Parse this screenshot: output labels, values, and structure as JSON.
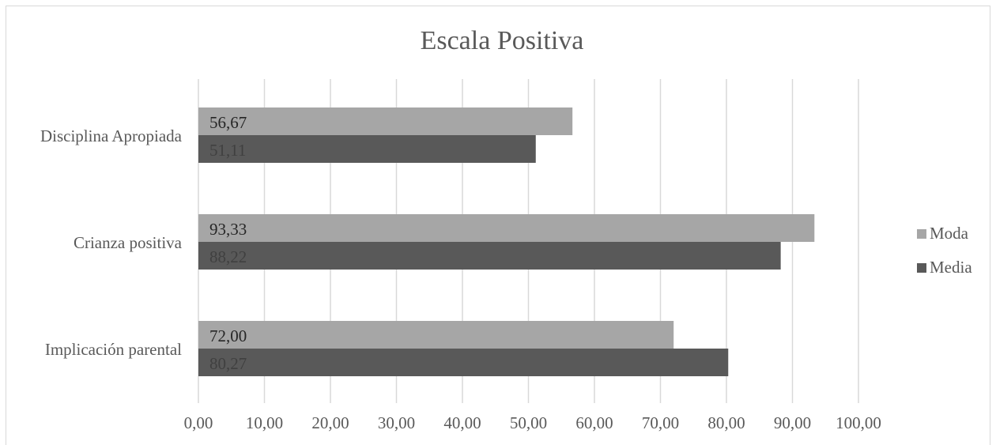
{
  "chart_data": {
    "type": "bar",
    "orientation": "horizontal",
    "title": "Escala Positiva",
    "categories": [
      "Disciplina Apropiada",
      "Crianza positiva",
      "Implicación parental"
    ],
    "series": [
      {
        "name": "Moda",
        "color": "#a6a6a6",
        "label_color": "#262626",
        "values": [
          56.67,
          93.33,
          72.0
        ],
        "labels": [
          "56,67",
          "93,33",
          "72,00"
        ]
      },
      {
        "name": "Media",
        "color": "#595959",
        "label_color": "#404040",
        "values": [
          51.11,
          88.22,
          80.27
        ],
        "labels": [
          "51,11",
          "88,22",
          "80,27"
        ]
      }
    ],
    "xlim": [
      0,
      100
    ],
    "xticks": [
      0,
      10,
      20,
      30,
      40,
      50,
      60,
      70,
      80,
      90,
      100
    ],
    "xtick_labels": [
      "0,00",
      "10,00",
      "20,00",
      "30,00",
      "40,00",
      "50,00",
      "60,00",
      "70,00",
      "80,00",
      "90,00",
      "100,00"
    ],
    "grid": true,
    "legend_position": "right"
  }
}
